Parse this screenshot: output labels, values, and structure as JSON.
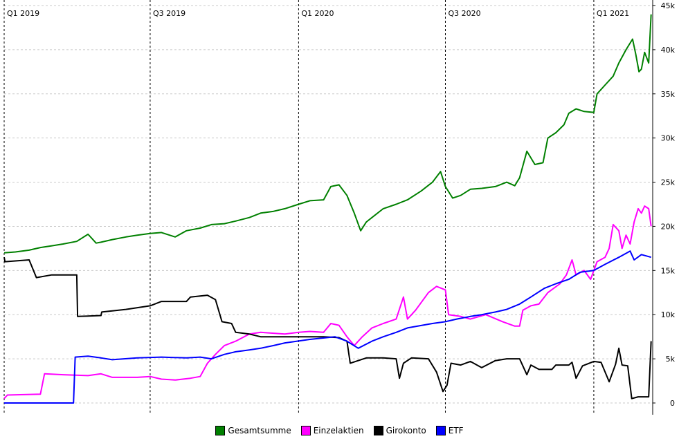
{
  "chart_data": {
    "type": "line",
    "title": "",
    "xlabel": "",
    "ylabel": "",
    "ylim": [
      0,
      45000
    ],
    "grid": true,
    "legend_position": "bottom",
    "x_tick_labels": [
      "Q1 2019",
      "Q3 2019",
      "Q1 2020",
      "Q3 2020",
      "Q1 2021"
    ],
    "y_tick_labels": [
      "0",
      "5k",
      "10k",
      "15k",
      "20k",
      "25k",
      "30k",
      "35k",
      "40k",
      "45k"
    ],
    "y_tick_values": [
      0,
      5000,
      10000,
      15000,
      20000,
      25000,
      30000,
      35000,
      40000,
      45000
    ],
    "x_start": "2019-01-01",
    "x_end": "2021-03-15",
    "series": [
      {
        "name": "Gesamtsumme",
        "color": "#008000",
        "points": [
          [
            "2019-01-01",
            17000
          ],
          [
            "2019-01-15",
            17100
          ],
          [
            "2019-02-01",
            17300
          ],
          [
            "2019-02-15",
            17600
          ],
          [
            "2019-03-01",
            17800
          ],
          [
            "2019-03-15",
            18000
          ],
          [
            "2019-04-01",
            18300
          ],
          [
            "2019-04-15",
            19100
          ],
          [
            "2019-04-25",
            18100
          ],
          [
            "2019-05-01",
            18200
          ],
          [
            "2019-05-15",
            18500
          ],
          [
            "2019-06-01",
            18800
          ],
          [
            "2019-06-15",
            19000
          ],
          [
            "2019-07-01",
            19200
          ],
          [
            "2019-07-15",
            19300
          ],
          [
            "2019-08-01",
            18800
          ],
          [
            "2019-08-15",
            19500
          ],
          [
            "2019-09-01",
            19800
          ],
          [
            "2019-09-15",
            20200
          ],
          [
            "2019-10-01",
            20300
          ],
          [
            "2019-10-15",
            20600
          ],
          [
            "2019-11-01",
            21000
          ],
          [
            "2019-11-15",
            21500
          ],
          [
            "2019-12-01",
            21700
          ],
          [
            "2019-12-15",
            22000
          ],
          [
            "2020-01-01",
            22500
          ],
          [
            "2020-01-15",
            22900
          ],
          [
            "2020-02-01",
            23000
          ],
          [
            "2020-02-10",
            24500
          ],
          [
            "2020-02-20",
            24700
          ],
          [
            "2020-03-01",
            23500
          ],
          [
            "2020-03-10",
            21500
          ],
          [
            "2020-03-18",
            19500
          ],
          [
            "2020-03-25",
            20500
          ],
          [
            "2020-04-01",
            21000
          ],
          [
            "2020-04-15",
            22000
          ],
          [
            "2020-05-01",
            22500
          ],
          [
            "2020-05-15",
            23000
          ],
          [
            "2020-06-01",
            24000
          ],
          [
            "2020-06-15",
            25000
          ],
          [
            "2020-06-25",
            26200
          ],
          [
            "2020-07-01",
            24500
          ],
          [
            "2020-07-10",
            23200
          ],
          [
            "2020-07-20",
            23500
          ],
          [
            "2020-08-01",
            24200
          ],
          [
            "2020-08-15",
            24300
          ],
          [
            "2020-09-01",
            24500
          ],
          [
            "2020-09-15",
            25000
          ],
          [
            "2020-09-25",
            24600
          ],
          [
            "2020-10-01",
            25500
          ],
          [
            "2020-10-10",
            28500
          ],
          [
            "2020-10-20",
            27000
          ],
          [
            "2020-10-30",
            27200
          ],
          [
            "2020-11-05",
            30000
          ],
          [
            "2020-11-15",
            30600
          ],
          [
            "2020-11-25",
            31500
          ],
          [
            "2020-12-01",
            32800
          ],
          [
            "2020-12-10",
            33300
          ],
          [
            "2020-12-20",
            33000
          ],
          [
            "2021-01-01",
            32900
          ],
          [
            "2021-01-05",
            35000
          ],
          [
            "2021-01-15",
            36000
          ],
          [
            "2021-01-25",
            37000
          ],
          [
            "2021-02-01",
            38500
          ],
          [
            "2021-02-10",
            40000
          ],
          [
            "2021-02-18",
            41200
          ],
          [
            "2021-02-22",
            39500
          ],
          [
            "2021-02-26",
            37500
          ],
          [
            "2021-03-01",
            37800
          ],
          [
            "2021-03-05",
            39700
          ],
          [
            "2021-03-10",
            38500
          ],
          [
            "2021-03-13",
            44000
          ]
        ]
      },
      {
        "name": "Einzelaktien",
        "color": "#ff00ff",
        "points": [
          [
            "2019-01-01",
            500
          ],
          [
            "2019-01-05",
            900
          ],
          [
            "2019-02-15",
            1000
          ],
          [
            "2019-02-20",
            3300
          ],
          [
            "2019-03-15",
            3200
          ],
          [
            "2019-04-15",
            3100
          ],
          [
            "2019-05-01",
            3300
          ],
          [
            "2019-05-15",
            2900
          ],
          [
            "2019-06-15",
            2900
          ],
          [
            "2019-07-01",
            3000
          ],
          [
            "2019-07-15",
            2700
          ],
          [
            "2019-08-01",
            2600
          ],
          [
            "2019-08-20",
            2800
          ],
          [
            "2019-09-01",
            3000
          ],
          [
            "2019-09-10",
            4500
          ],
          [
            "2019-09-20",
            5500
          ],
          [
            "2019-10-01",
            6500
          ],
          [
            "2019-10-15",
            7000
          ],
          [
            "2019-11-01",
            7800
          ],
          [
            "2019-11-15",
            8000
          ],
          [
            "2019-12-01",
            7900
          ],
          [
            "2019-12-15",
            7800
          ],
          [
            "2020-01-01",
            8000
          ],
          [
            "2020-01-15",
            8100
          ],
          [
            "2020-02-01",
            8000
          ],
          [
            "2020-02-10",
            9000
          ],
          [
            "2020-02-20",
            8800
          ],
          [
            "2020-03-01",
            7500
          ],
          [
            "2020-03-10",
            6500
          ],
          [
            "2020-03-20",
            7500
          ],
          [
            "2020-04-01",
            8500
          ],
          [
            "2020-04-15",
            9000
          ],
          [
            "2020-05-01",
            9500
          ],
          [
            "2020-05-10",
            12000
          ],
          [
            "2020-05-15",
            9500
          ],
          [
            "2020-05-25",
            10500
          ],
          [
            "2020-06-10",
            12500
          ],
          [
            "2020-06-20",
            13200
          ],
          [
            "2020-07-01",
            12800
          ],
          [
            "2020-07-05",
            10000
          ],
          [
            "2020-07-20",
            9800
          ],
          [
            "2020-08-01",
            9500
          ],
          [
            "2020-08-20",
            10000
          ],
          [
            "2020-09-10",
            9200
          ],
          [
            "2020-09-25",
            8700
          ],
          [
            "2020-10-01",
            8700
          ],
          [
            "2020-10-05",
            10500
          ],
          [
            "2020-10-15",
            11000
          ],
          [
            "2020-10-25",
            11200
          ],
          [
            "2020-11-05",
            12500
          ],
          [
            "2020-11-20",
            13500
          ],
          [
            "2020-11-28",
            14500
          ],
          [
            "2020-12-05",
            16200
          ],
          [
            "2020-12-10",
            14500
          ],
          [
            "2020-12-20",
            15000
          ],
          [
            "2020-12-28",
            14000
          ],
          [
            "2021-01-05",
            16000
          ],
          [
            "2021-01-15",
            16500
          ],
          [
            "2021-01-20",
            17500
          ],
          [
            "2021-01-25",
            20200
          ],
          [
            "2021-02-01",
            19500
          ],
          [
            "2021-02-05",
            17500
          ],
          [
            "2021-02-10",
            19000
          ],
          [
            "2021-02-15",
            18000
          ],
          [
            "2021-02-20",
            20500
          ],
          [
            "2021-02-25",
            22000
          ],
          [
            "2021-03-01",
            21500
          ],
          [
            "2021-03-05",
            22300
          ],
          [
            "2021-03-10",
            22000
          ],
          [
            "2021-03-13",
            20000
          ]
        ]
      },
      {
        "name": "Girokonto",
        "color": "#000000",
        "points": [
          [
            "2019-01-01",
            16500
          ],
          [
            "2019-01-02",
            16000
          ],
          [
            "2019-02-01",
            16200
          ],
          [
            "2019-02-10",
            14200
          ],
          [
            "2019-03-01",
            14500
          ],
          [
            "2019-04-01",
            14500
          ],
          [
            "2019-04-02",
            9800
          ],
          [
            "2019-05-01",
            9900
          ],
          [
            "2019-05-02",
            10300
          ],
          [
            "2019-06-01",
            10600
          ],
          [
            "2019-07-01",
            11000
          ],
          [
            "2019-07-15",
            11500
          ],
          [
            "2019-08-15",
            11500
          ],
          [
            "2019-08-20",
            12000
          ],
          [
            "2019-09-10",
            12200
          ],
          [
            "2019-09-20",
            11700
          ],
          [
            "2019-09-28",
            9200
          ],
          [
            "2019-10-10",
            9000
          ],
          [
            "2019-10-15",
            8000
          ],
          [
            "2019-11-01",
            7800
          ],
          [
            "2019-11-15",
            7500
          ],
          [
            "2019-12-15",
            7500
          ],
          [
            "2020-01-15",
            7500
          ],
          [
            "2020-02-01",
            7500
          ],
          [
            "2020-02-20",
            7400
          ],
          [
            "2020-03-01",
            7000
          ],
          [
            "2020-03-05",
            4500
          ],
          [
            "2020-03-25",
            5100
          ],
          [
            "2020-04-15",
            5100
          ],
          [
            "2020-05-01",
            5000
          ],
          [
            "2020-05-05",
            2800
          ],
          [
            "2020-05-10",
            4500
          ],
          [
            "2020-05-20",
            5100
          ],
          [
            "2020-06-10",
            5000
          ],
          [
            "2020-06-20",
            3500
          ],
          [
            "2020-06-28",
            1300
          ],
          [
            "2020-07-03",
            2000
          ],
          [
            "2020-07-08",
            4500
          ],
          [
            "2020-07-20",
            4300
          ],
          [
            "2020-08-01",
            4700
          ],
          [
            "2020-08-15",
            4000
          ],
          [
            "2020-09-01",
            4800
          ],
          [
            "2020-09-15",
            5000
          ],
          [
            "2020-10-01",
            5000
          ],
          [
            "2020-10-10",
            3200
          ],
          [
            "2020-10-15",
            4300
          ],
          [
            "2020-10-25",
            3800
          ],
          [
            "2020-11-10",
            3800
          ],
          [
            "2020-11-15",
            4300
          ],
          [
            "2020-12-01",
            4300
          ],
          [
            "2020-12-05",
            4600
          ],
          [
            "2020-12-10",
            2800
          ],
          [
            "2020-12-18",
            4200
          ],
          [
            "2021-01-01",
            4700
          ],
          [
            "2021-01-10",
            4600
          ],
          [
            "2021-01-20",
            2400
          ],
          [
            "2021-01-28",
            4400
          ],
          [
            "2021-02-01",
            6200
          ],
          [
            "2021-02-05",
            4300
          ],
          [
            "2021-02-12",
            4200
          ],
          [
            "2021-02-17",
            500
          ],
          [
            "2021-02-25",
            700
          ],
          [
            "2021-03-10",
            700
          ],
          [
            "2021-03-13",
            7000
          ]
        ]
      },
      {
        "name": "ETF",
        "color": "#0000ff",
        "points": [
          [
            "2019-01-01",
            0
          ],
          [
            "2019-03-28",
            0
          ],
          [
            "2019-03-30",
            5200
          ],
          [
            "2019-04-15",
            5300
          ],
          [
            "2019-05-01",
            5100
          ],
          [
            "2019-05-15",
            4900
          ],
          [
            "2019-06-15",
            5100
          ],
          [
            "2019-07-15",
            5200
          ],
          [
            "2019-08-15",
            5100
          ],
          [
            "2019-09-01",
            5200
          ],
          [
            "2019-09-15",
            5000
          ],
          [
            "2019-10-01",
            5500
          ],
          [
            "2019-10-15",
            5800
          ],
          [
            "2019-11-01",
            6000
          ],
          [
            "2019-11-15",
            6200
          ],
          [
            "2019-12-01",
            6500
          ],
          [
            "2019-12-15",
            6800
          ],
          [
            "2020-01-15",
            7200
          ],
          [
            "2020-02-15",
            7500
          ],
          [
            "2020-03-01",
            7000
          ],
          [
            "2020-03-15",
            6200
          ],
          [
            "2020-04-01",
            7000
          ],
          [
            "2020-04-15",
            7500
          ],
          [
            "2020-05-01",
            8000
          ],
          [
            "2020-05-15",
            8500
          ],
          [
            "2020-06-15",
            9000
          ],
          [
            "2020-07-01",
            9200
          ],
          [
            "2020-07-15",
            9500
          ],
          [
            "2020-08-01",
            9800
          ],
          [
            "2020-08-15",
            10000
          ],
          [
            "2020-09-01",
            10300
          ],
          [
            "2020-09-15",
            10600
          ],
          [
            "2020-10-01",
            11200
          ],
          [
            "2020-10-15",
            12000
          ],
          [
            "2020-11-01",
            13000
          ],
          [
            "2020-11-15",
            13500
          ],
          [
            "2020-12-01",
            14000
          ],
          [
            "2020-12-15",
            14800
          ],
          [
            "2021-01-01",
            15000
          ],
          [
            "2021-01-15",
            15700
          ],
          [
            "2021-02-01",
            16500
          ],
          [
            "2021-02-15",
            17200
          ],
          [
            "2021-02-20",
            16200
          ],
          [
            "2021-03-01",
            16800
          ],
          [
            "2021-03-13",
            16500
          ]
        ]
      }
    ]
  }
}
